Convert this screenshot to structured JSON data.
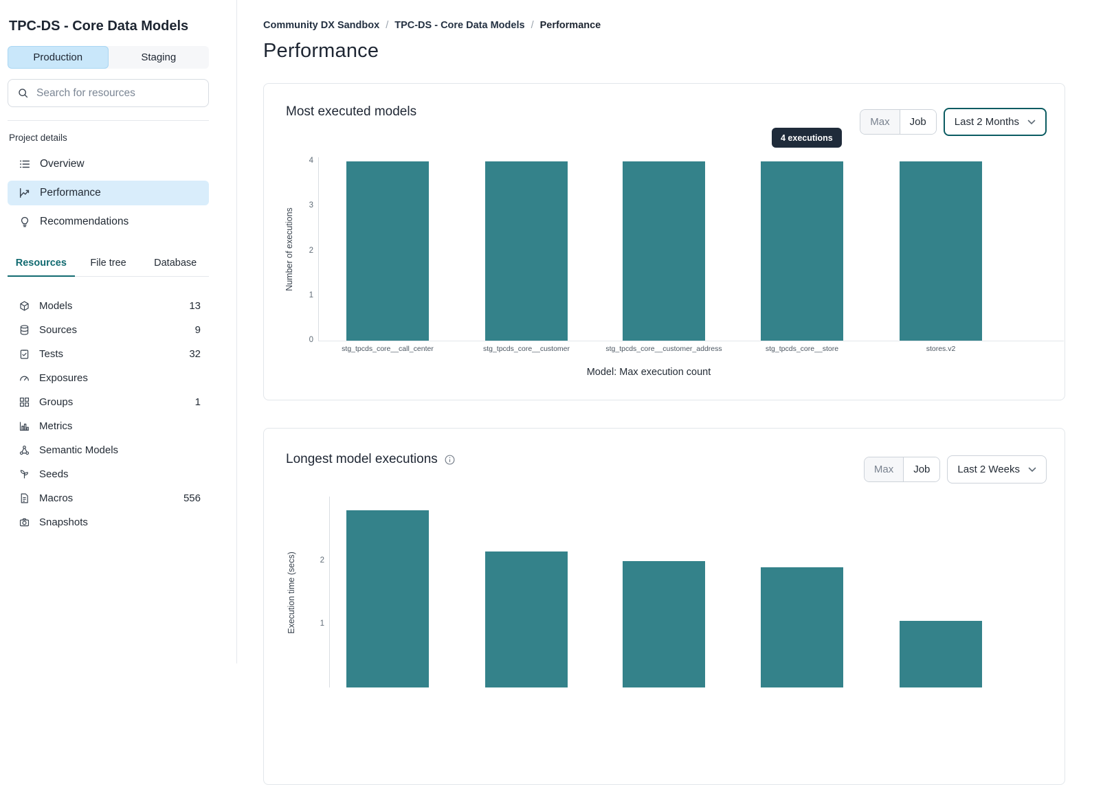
{
  "sidebar": {
    "title": "TPC-DS - Core Data Models",
    "environment_tabs": [
      {
        "label": "Production",
        "active": true
      },
      {
        "label": "Staging",
        "active": false
      }
    ],
    "search": {
      "placeholder": "Search for resources",
      "icon": "search-icon"
    },
    "section_label": "Project details",
    "nav_items": [
      {
        "label": "Overview",
        "icon": "overview-list-icon",
        "active": false
      },
      {
        "label": "Performance",
        "icon": "performance-chart-icon",
        "active": true
      },
      {
        "label": "Recommendations",
        "icon": "lightbulb-icon",
        "active": false
      }
    ],
    "resource_tabs": [
      {
        "label": "Resources",
        "active": true
      },
      {
        "label": "File tree",
        "active": false
      },
      {
        "label": "Database",
        "active": false
      }
    ],
    "resources": [
      {
        "label": "Models",
        "count": "13",
        "icon": "cube-icon"
      },
      {
        "label": "Sources",
        "count": "9",
        "icon": "database-icon"
      },
      {
        "label": "Tests",
        "count": "32",
        "icon": "clipboard-check-icon"
      },
      {
        "label": "Exposures",
        "count": "",
        "icon": "gauge-icon"
      },
      {
        "label": "Groups",
        "count": "1",
        "icon": "grid-icon"
      },
      {
        "label": "Metrics",
        "count": "",
        "icon": "bar-chart-icon"
      },
      {
        "label": "Semantic Models",
        "count": "",
        "icon": "share-nodes-icon"
      },
      {
        "label": "Seeds",
        "count": "",
        "icon": "seedling-icon"
      },
      {
        "label": "Macros",
        "count": "556",
        "icon": "document-icon"
      },
      {
        "label": "Snapshots",
        "count": "",
        "icon": "camera-icon"
      }
    ]
  },
  "breadcrumb": [
    "Community DX Sandbox",
    "TPC-DS - Core Data Models",
    "Performance"
  ],
  "breadcrumb_separator": "/",
  "page_title": "Performance",
  "cards": [
    {
      "has_info_icon": false,
      "controls": {
        "segments": [
          {
            "label": "Max",
            "muted": true
          },
          {
            "label": "Job",
            "muted": false
          }
        ],
        "dropdown": {
          "value": "Last 2 Months",
          "highlighted": true,
          "icon": "chevron-down-icon"
        }
      }
    },
    {
      "has_info_icon": true,
      "controls": {
        "segments": [
          {
            "label": "Max",
            "muted": true
          },
          {
            "label": "Job",
            "muted": false
          }
        ],
        "dropdown": {
          "value": "Last 2 Weeks",
          "highlighted": false,
          "icon": "chevron-down-icon"
        }
      }
    }
  ],
  "chart_data": [
    {
      "type": "bar",
      "title": "Most executed models",
      "categories": [
        "stg_tpcds_core__call_center",
        "stg_tpcds_core__customer",
        "stg_tpcds_core__customer_address",
        "stg_tpcds_core__store",
        "stores.v2"
      ],
      "values": [
        4,
        4,
        4,
        4,
        4
      ],
      "xlabel": "Model: Max execution count",
      "ylabel": "Number of executions",
      "ylim": [
        0,
        4
      ],
      "yticks": [
        0,
        1,
        2,
        3,
        4
      ],
      "bar_color": "#34828A",
      "annotation": "4 executions",
      "grid": false,
      "legend": false
    },
    {
      "type": "bar",
      "title": "Longest model executions",
      "categories": [
        "",
        "",
        "",
        "",
        ""
      ],
      "values": [
        2.8,
        2.15,
        2.0,
        1.9,
        1.05
      ],
      "xlabel": "",
      "ylabel": "Execution time (secs)",
      "ylim": [
        0,
        3
      ],
      "yticks": [
        1,
        2
      ],
      "bar_color": "#34828A",
      "grid": false,
      "legend": false,
      "note": "bottom of chart cut off by viewport"
    }
  ]
}
